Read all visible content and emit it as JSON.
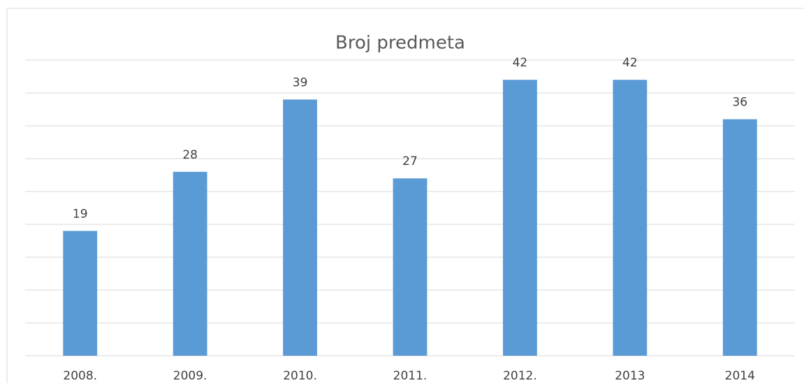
{
  "chart_data": {
    "type": "bar",
    "title": "Broj predmeta",
    "categories": [
      "2008.",
      "2009.",
      "2010.",
      "2011.",
      "2012.",
      "2013",
      "2014"
    ],
    "values": [
      19,
      28,
      39,
      27,
      42,
      42,
      36
    ],
    "color": "#5b9bd5",
    "ylim": [
      0,
      45
    ],
    "yticks": [
      0,
      5,
      10,
      15,
      20,
      25,
      30,
      35,
      40,
      45
    ],
    "grid": true,
    "y_tick_labels": false,
    "data_labels": true
  }
}
